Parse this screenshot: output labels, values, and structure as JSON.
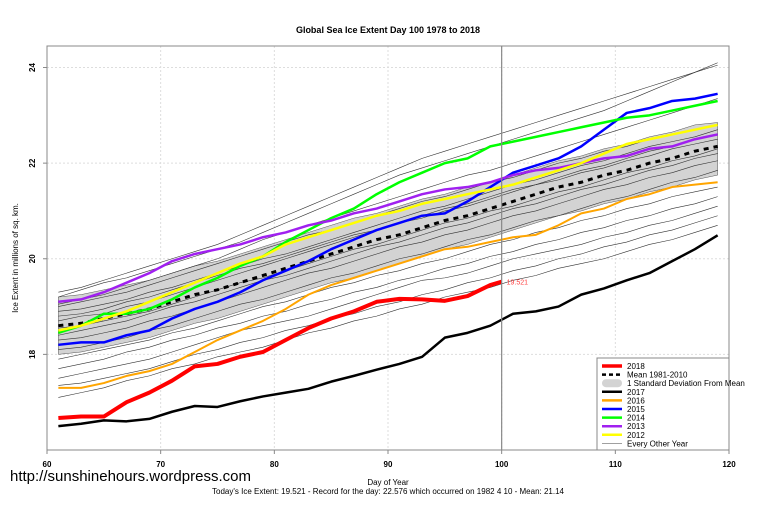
{
  "chart_data": {
    "type": "line",
    "title": "Global Sea Ice Extent Day 100 1978 to 2018",
    "xlabel": "Day of Year",
    "ylabel": "Ice Extent in millions of sq. km.",
    "xlim": [
      60,
      120
    ],
    "ylim": [
      16.0,
      24.45
    ],
    "xticks": [
      60,
      70,
      80,
      90,
      100,
      110,
      120
    ],
    "yticks": [
      18,
      20,
      22,
      24
    ],
    "grid": true,
    "current_day_marker": 100,
    "current_value_label": "19.521",
    "subtitle": "Today's Ice Extent: 19.521  - Record for the day: 22.576 which occurred on 1982 4 10  - Mean: 21.14",
    "legend_position": "bottom-right",
    "legend": [
      {
        "label": "2018",
        "color": "#ff0000",
        "style": "thick"
      },
      {
        "label": "Mean 1981-2010",
        "color": "#000000",
        "style": "dashed"
      },
      {
        "label": "1 Standard Deviation From Mean",
        "color": "#d3d3d3",
        "style": "band"
      },
      {
        "label": "2017",
        "color": "#000000",
        "style": "line"
      },
      {
        "label": "2016",
        "color": "#ffa500",
        "style": "line"
      },
      {
        "label": "2015",
        "color": "#0000ff",
        "style": "line"
      },
      {
        "label": "2014",
        "color": "#00ff00",
        "style": "line"
      },
      {
        "label": "2013",
        "color": "#a020f0",
        "style": "line"
      },
      {
        "label": "2012",
        "color": "#ffff00",
        "style": "line"
      },
      {
        "label": "Every Other Year",
        "color": "#808080",
        "style": "thin"
      }
    ],
    "x": [
      61,
      63,
      65,
      67,
      69,
      71,
      73,
      75,
      77,
      79,
      81,
      83,
      85,
      87,
      89,
      91,
      93,
      95,
      97,
      99,
      101,
      103,
      105,
      107,
      109,
      111,
      113,
      115,
      117,
      119
    ],
    "mean": [
      18.6,
      18.65,
      18.75,
      18.85,
      18.95,
      19.1,
      19.25,
      19.35,
      19.5,
      19.65,
      19.8,
      19.95,
      20.1,
      20.25,
      20.4,
      20.5,
      20.65,
      20.8,
      20.9,
      21.05,
      21.2,
      21.35,
      21.5,
      21.6,
      21.75,
      21.85,
      22.0,
      22.1,
      22.25,
      22.35
    ],
    "std_upper": [
      19.2,
      19.25,
      19.35,
      19.45,
      19.55,
      19.7,
      19.85,
      19.95,
      20.1,
      20.25,
      20.4,
      20.55,
      20.7,
      20.85,
      20.95,
      21.1,
      21.25,
      21.35,
      21.5,
      21.6,
      21.75,
      21.9,
      22.05,
      22.15,
      22.3,
      22.4,
      22.55,
      22.65,
      22.8,
      22.85
    ],
    "std_lower": [
      18.0,
      18.05,
      18.15,
      18.25,
      18.35,
      18.5,
      18.65,
      18.75,
      18.9,
      19.05,
      19.2,
      19.35,
      19.5,
      19.6,
      19.75,
      19.9,
      20.05,
      20.2,
      20.3,
      20.45,
      20.6,
      20.75,
      20.9,
      21.0,
      21.15,
      21.25,
      21.4,
      21.5,
      21.65,
      21.75
    ],
    "series": [
      {
        "name": "2018",
        "color": "#ff0000",
        "width": 4,
        "x": [
          61,
          63,
          65,
          67,
          69,
          71,
          73,
          75,
          77,
          79,
          81,
          83,
          85,
          87,
          89,
          91,
          93,
          95,
          97,
          99,
          100
        ],
        "values": [
          16.67,
          16.7,
          16.7,
          17.0,
          17.2,
          17.45,
          17.75,
          17.8,
          17.95,
          18.05,
          18.3,
          18.55,
          18.75,
          18.9,
          19.1,
          19.16,
          19.15,
          19.12,
          19.22,
          19.45,
          19.52
        ]
      },
      {
        "name": "2017",
        "color": "#000000",
        "width": 2.5,
        "values": [
          16.5,
          16.55,
          16.62,
          16.6,
          16.65,
          16.8,
          16.92,
          16.9,
          17.02,
          17.12,
          17.2,
          17.28,
          17.43,
          17.55,
          17.68,
          17.8,
          17.95,
          18.35,
          18.45,
          18.6,
          18.85,
          18.9,
          19.0,
          19.25,
          19.38,
          19.55,
          19.7,
          19.95,
          20.2,
          20.49
        ]
      },
      {
        "name": "2016",
        "color": "#ffa500",
        "width": 2,
        "values": [
          17.3,
          17.3,
          17.4,
          17.55,
          17.65,
          17.8,
          18.05,
          18.3,
          18.5,
          18.7,
          18.95,
          19.25,
          19.45,
          19.6,
          19.75,
          19.9,
          20.05,
          20.2,
          20.25,
          20.35,
          20.45,
          20.5,
          20.7,
          20.95,
          21.05,
          21.25,
          21.35,
          21.5,
          21.55,
          21.6
        ]
      },
      {
        "name": "2015",
        "color": "#0000ff",
        "width": 2.5,
        "values": [
          18.2,
          18.25,
          18.25,
          18.4,
          18.5,
          18.75,
          18.95,
          19.1,
          19.3,
          19.55,
          19.75,
          19.95,
          20.2,
          20.4,
          20.6,
          20.75,
          20.9,
          20.95,
          21.2,
          21.5,
          21.8,
          21.95,
          22.1,
          22.35,
          22.7,
          23.05,
          23.15,
          23.3,
          23.35,
          23.45
        ]
      },
      {
        "name": "2014",
        "color": "#00ff00",
        "width": 2.5,
        "values": [
          18.45,
          18.6,
          18.85,
          18.85,
          18.95,
          19.15,
          19.4,
          19.6,
          19.85,
          20.05,
          20.35,
          20.6,
          20.85,
          21.05,
          21.35,
          21.6,
          21.8,
          22.0,
          22.1,
          22.35,
          22.45,
          22.55,
          22.65,
          22.75,
          22.85,
          22.95,
          23.0,
          23.1,
          23.2,
          23.3
        ]
      },
      {
        "name": "2013",
        "color": "#a020f0",
        "width": 2.5,
        "values": [
          19.1,
          19.15,
          19.3,
          19.5,
          19.7,
          19.95,
          20.1,
          20.2,
          20.3,
          20.45,
          20.55,
          20.7,
          20.8,
          20.95,
          21.05,
          21.2,
          21.35,
          21.45,
          21.5,
          21.6,
          21.75,
          21.85,
          21.9,
          22.0,
          22.1,
          22.15,
          22.3,
          22.35,
          22.5,
          22.6
        ]
      },
      {
        "name": "2012",
        "color": "#ffff00",
        "width": 2.5,
        "values": [
          18.5,
          18.6,
          18.75,
          18.9,
          19.1,
          19.3,
          19.5,
          19.7,
          19.9,
          20.05,
          20.3,
          20.45,
          20.6,
          20.75,
          20.9,
          21.0,
          21.15,
          21.25,
          21.35,
          21.45,
          21.55,
          21.7,
          21.85,
          22.0,
          22.2,
          22.4,
          22.5,
          22.6,
          22.7,
          22.8
        ]
      }
    ],
    "other_years": [
      [
        19.0,
        19.1,
        19.2,
        19.3,
        19.45,
        19.6,
        19.75,
        19.9,
        20.05,
        20.2,
        20.35,
        20.5,
        20.6,
        20.75,
        20.9,
        21.05,
        21.2,
        21.3,
        21.45,
        21.6,
        21.7,
        21.85,
        22.0,
        22.1,
        22.25,
        22.35,
        22.5,
        22.6,
        22.7,
        22.8
      ],
      [
        18.7,
        18.8,
        18.85,
        19.0,
        19.1,
        19.25,
        19.4,
        19.55,
        19.7,
        19.85,
        20.0,
        20.15,
        20.3,
        20.45,
        20.6,
        20.75,
        20.85,
        21.0,
        21.1,
        21.25,
        21.4,
        21.55,
        21.65,
        21.8,
        21.9,
        22.05,
        22.15,
        22.3,
        22.4,
        22.5
      ],
      [
        19.3,
        19.4,
        19.55,
        19.7,
        19.85,
        20.0,
        20.15,
        20.3,
        20.5,
        20.7,
        20.9,
        21.1,
        21.3,
        21.5,
        21.7,
        21.9,
        22.1,
        22.25,
        22.4,
        22.55,
        22.7,
        22.85,
        23.0,
        23.15,
        23.3,
        23.45,
        23.6,
        23.75,
        23.9,
        24.05
      ],
      [
        19.2,
        19.35,
        19.5,
        19.6,
        19.75,
        19.9,
        20.05,
        20.2,
        20.35,
        20.55,
        20.75,
        20.95,
        21.15,
        21.35,
        21.55,
        21.75,
        21.9,
        22.05,
        22.2,
        22.35,
        22.5,
        22.65,
        22.8,
        22.95,
        23.1,
        23.3,
        23.5,
        23.7,
        23.9,
        24.1
      ],
      [
        18.3,
        18.35,
        18.45,
        18.55,
        18.7,
        18.8,
        18.95,
        19.1,
        19.25,
        19.4,
        19.55,
        19.7,
        19.8,
        19.95,
        20.1,
        20.25,
        20.35,
        20.5,
        20.6,
        20.75,
        20.9,
        21.0,
        21.15,
        21.3,
        21.45,
        21.55,
        21.7,
        21.8,
        21.95,
        22.05
      ],
      [
        17.9,
        18.0,
        18.1,
        18.2,
        18.3,
        18.45,
        18.55,
        18.7,
        18.85,
        19.0,
        19.1,
        19.25,
        19.4,
        19.5,
        19.65,
        19.75,
        19.9,
        20.0,
        20.15,
        20.3,
        20.4,
        20.55,
        20.65,
        20.8,
        20.9,
        21.05,
        21.15,
        21.3,
        21.4,
        21.5
      ],
      [
        17.5,
        17.6,
        17.7,
        17.8,
        17.9,
        18.05,
        18.2,
        18.35,
        18.5,
        18.6,
        18.7,
        18.8,
        18.95,
        19.1,
        19.25,
        19.4,
        19.55,
        19.6,
        19.7,
        19.85,
        20.0,
        20.1,
        20.2,
        20.3,
        20.45,
        20.55,
        20.7,
        20.8,
        20.95,
        21.1
      ],
      [
        17.1,
        17.2,
        17.3,
        17.45,
        17.55,
        17.7,
        17.8,
        17.95,
        18.05,
        18.15,
        18.3,
        18.45,
        18.55,
        18.7,
        18.8,
        18.95,
        19.05,
        19.2,
        19.3,
        19.4,
        19.55,
        19.65,
        19.8,
        19.9,
        20.0,
        20.15,
        20.3,
        20.4,
        20.55,
        20.7
      ],
      [
        18.9,
        18.95,
        19.05,
        19.15,
        19.3,
        19.4,
        19.55,
        19.7,
        19.85,
        20.0,
        20.1,
        20.25,
        20.4,
        20.55,
        20.7,
        20.85,
        21.0,
        21.1,
        21.25,
        21.4,
        21.55,
        21.65,
        21.8,
        21.95,
        22.05,
        22.2,
        22.35,
        22.45,
        22.55,
        22.7
      ],
      [
        18.55,
        18.6,
        18.7,
        18.8,
        18.9,
        19.05,
        19.2,
        19.35,
        19.5,
        19.6,
        19.75,
        19.9,
        20.05,
        20.2,
        20.3,
        20.45,
        20.6,
        20.75,
        20.85,
        21.0,
        21.1,
        21.25,
        21.4,
        21.5,
        21.65,
        21.8,
        21.9,
        22.05,
        22.15,
        22.3
      ],
      [
        18.1,
        18.15,
        18.25,
        18.35,
        18.5,
        18.6,
        18.75,
        18.9,
        19.05,
        19.15,
        19.3,
        19.45,
        19.6,
        19.7,
        19.85,
        20.0,
        20.1,
        20.25,
        20.4,
        20.5,
        20.65,
        20.8,
        20.9,
        21.05,
        21.2,
        21.3,
        21.45,
        21.6,
        21.7,
        21.85
      ],
      [
        17.7,
        17.8,
        17.9,
        18.05,
        18.15,
        18.3,
        18.4,
        18.55,
        18.65,
        18.8,
        18.9,
        19.05,
        19.15,
        19.3,
        19.4,
        19.55,
        19.65,
        19.8,
        19.9,
        20.05,
        20.15,
        20.3,
        20.4,
        20.55,
        20.65,
        20.8,
        20.9,
        21.05,
        21.15,
        21.3
      ],
      [
        19.05,
        19.15,
        19.25,
        19.4,
        19.55,
        19.7,
        19.85,
        20.0,
        20.2,
        20.4,
        20.55,
        20.7,
        20.85,
        21.0,
        21.15,
        21.3,
        21.45,
        21.6,
        21.75,
        21.85,
        22.0,
        22.15,
        22.3,
        22.45,
        22.6,
        22.75,
        22.9,
        23.05,
        23.2,
        23.35
      ],
      [
        18.4,
        18.5,
        18.6,
        18.7,
        18.85,
        19.0,
        19.1,
        19.25,
        19.4,
        19.55,
        19.65,
        19.8,
        19.95,
        20.1,
        20.25,
        20.35,
        20.5,
        20.65,
        20.75,
        20.9,
        21.05,
        21.15,
        21.3,
        21.45,
        21.55,
        21.7,
        21.85,
        21.95,
        22.1,
        22.2
      ],
      [
        17.35,
        17.4,
        17.5,
        17.6,
        17.7,
        17.85,
        18.0,
        18.1,
        18.25,
        18.35,
        18.5,
        18.6,
        18.75,
        18.85,
        19.0,
        19.1,
        19.25,
        19.35,
        19.5,
        19.6,
        19.75,
        19.85,
        20.0,
        20.1,
        20.25,
        20.35,
        20.5,
        20.6,
        20.75,
        20.9
      ],
      [
        18.8,
        18.85,
        18.95,
        19.1,
        19.2,
        19.35,
        19.5,
        19.65,
        19.8,
        19.9,
        20.05,
        20.2,
        20.35,
        20.5,
        20.6,
        20.75,
        20.9,
        21.05,
        21.15,
        21.3,
        21.45,
        21.55,
        21.7,
        21.85,
        21.95,
        22.1,
        22.25,
        22.35,
        22.5,
        22.6
      ]
    ]
  },
  "footer": {
    "url": "http://sunshinehours.wordpress.com"
  }
}
